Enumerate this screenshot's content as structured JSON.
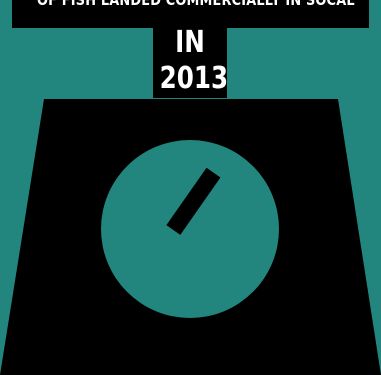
{
  "header": {
    "line1": "OF FISH LANDED COMMERCIALLY IN SOCAL",
    "line2": "IN",
    "line3": "2013"
  },
  "graphic": {
    "icon": "scale-icon",
    "colors": {
      "background": "#22867f",
      "scale_body": "#000000",
      "dial_face": "#22867f",
      "needle": "#000000",
      "text": "#ffffff"
    }
  }
}
